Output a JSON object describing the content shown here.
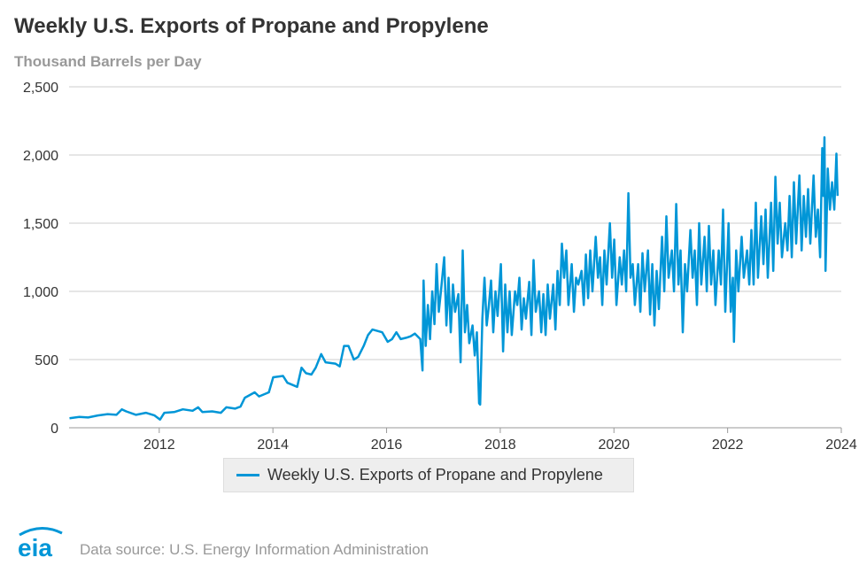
{
  "title": "Weekly U.S. Exports of Propane and Propylene",
  "subtitle": "Thousand Barrels per Day",
  "source": "Data source: U.S. Energy Information Administration",
  "logo_text": "eia",
  "colors": {
    "series": "#0096d7",
    "grid": "#cccccc",
    "logo": "#0096d7"
  },
  "chart_data": {
    "type": "line",
    "title": "Weekly U.S. Exports of Propane and Propylene",
    "ylabel": "Thousand Barrels per Day",
    "xlabel": "",
    "ylim": [
      0,
      2500
    ],
    "xlim": [
      "2010-06-01",
      "2024-01-01"
    ],
    "grid": true,
    "legend_position": "bottom",
    "y_ticks": [
      "0",
      "500",
      "1,000",
      "1,500",
      "2,000",
      "2,500"
    ],
    "y_tick_values": [
      0,
      500,
      1000,
      1500,
      2000,
      2500
    ],
    "x_ticks": [
      "2012",
      "2014",
      "2016",
      "2018",
      "2020",
      "2022",
      "2024"
    ],
    "series": [
      {
        "name": "Weekly U.S. Exports of Propane and Propylene",
        "points": [
          [
            "2010-06-04",
            70
          ],
          [
            "2010-08-06",
            80
          ],
          [
            "2010-10-01",
            75
          ],
          [
            "2010-12-03",
            90
          ],
          [
            "2011-02-04",
            100
          ],
          [
            "2011-04-01",
            95
          ],
          [
            "2011-05-06",
            135
          ],
          [
            "2011-06-03",
            120
          ],
          [
            "2011-08-05",
            95
          ],
          [
            "2011-10-07",
            110
          ],
          [
            "2011-12-02",
            90
          ],
          [
            "2012-01-06",
            60
          ],
          [
            "2012-02-03",
            110
          ],
          [
            "2012-04-06",
            115
          ],
          [
            "2012-06-01",
            135
          ],
          [
            "2012-08-03",
            125
          ],
          [
            "2012-09-07",
            150
          ],
          [
            "2012-10-05",
            115
          ],
          [
            "2012-12-07",
            120
          ],
          [
            "2013-02-01",
            110
          ],
          [
            "2013-03-08",
            150
          ],
          [
            "2013-05-03",
            140
          ],
          [
            "2013-06-07",
            155
          ],
          [
            "2013-07-05",
            220
          ],
          [
            "2013-09-06",
            260
          ],
          [
            "2013-10-04",
            230
          ],
          [
            "2013-12-06",
            260
          ],
          [
            "2014-01-03",
            370
          ],
          [
            "2014-03-07",
            380
          ],
          [
            "2014-04-04",
            330
          ],
          [
            "2014-06-06",
            300
          ],
          [
            "2014-07-04",
            440
          ],
          [
            "2014-08-01",
            400
          ],
          [
            "2014-09-05",
            390
          ],
          [
            "2014-10-03",
            440
          ],
          [
            "2014-11-07",
            540
          ],
          [
            "2014-12-05",
            480
          ],
          [
            "2015-02-06",
            470
          ],
          [
            "2015-03-06",
            450
          ],
          [
            "2015-04-03",
            600
          ],
          [
            "2015-05-01",
            600
          ],
          [
            "2015-06-05",
            500
          ],
          [
            "2015-07-03",
            520
          ],
          [
            "2015-08-07",
            600
          ],
          [
            "2015-09-04",
            680
          ],
          [
            "2015-10-02",
            720
          ],
          [
            "2015-12-04",
            700
          ],
          [
            "2016-01-08",
            630
          ],
          [
            "2016-02-05",
            650
          ],
          [
            "2016-03-04",
            700
          ],
          [
            "2016-04-01",
            650
          ],
          [
            "2016-05-06",
            660
          ],
          [
            "2016-06-03",
            670
          ],
          [
            "2016-07-01",
            690
          ],
          [
            "2016-08-05",
            650
          ],
          [
            "2016-08-19",
            420
          ],
          [
            "2016-08-26",
            1080
          ],
          [
            "2016-09-09",
            600
          ],
          [
            "2016-09-23",
            900
          ],
          [
            "2016-10-07",
            650
          ],
          [
            "2016-10-21",
            1000
          ],
          [
            "2016-11-04",
            760
          ],
          [
            "2016-11-18",
            1200
          ],
          [
            "2016-12-02",
            850
          ],
          [
            "2016-12-16",
            1000
          ],
          [
            "2017-01-06",
            1250
          ],
          [
            "2017-01-20",
            750
          ],
          [
            "2017-02-03",
            1100
          ],
          [
            "2017-02-17",
            700
          ],
          [
            "2017-03-03",
            1050
          ],
          [
            "2017-03-17",
            850
          ],
          [
            "2017-04-07",
            980
          ],
          [
            "2017-04-21",
            480
          ],
          [
            "2017-05-05",
            1300
          ],
          [
            "2017-05-19",
            700
          ],
          [
            "2017-06-02",
            900
          ],
          [
            "2017-06-16",
            620
          ],
          [
            "2017-07-07",
            750
          ],
          [
            "2017-07-21",
            530
          ],
          [
            "2017-08-04",
            700
          ],
          [
            "2017-08-18",
            180
          ],
          [
            "2017-08-25",
            170
          ],
          [
            "2017-09-08",
            800
          ],
          [
            "2017-09-22",
            1100
          ],
          [
            "2017-10-06",
            750
          ],
          [
            "2017-10-20",
            900
          ],
          [
            "2017-11-03",
            1080
          ],
          [
            "2017-11-17",
            700
          ],
          [
            "2017-12-01",
            1000
          ],
          [
            "2017-12-15",
            820
          ],
          [
            "2018-01-05",
            1200
          ],
          [
            "2018-01-19",
            560
          ],
          [
            "2018-02-02",
            1050
          ],
          [
            "2018-02-16",
            700
          ],
          [
            "2018-03-02",
            1000
          ],
          [
            "2018-03-16",
            680
          ],
          [
            "2018-04-06",
            1000
          ],
          [
            "2018-04-20",
            900
          ],
          [
            "2018-05-04",
            1100
          ],
          [
            "2018-05-18",
            720
          ],
          [
            "2018-06-01",
            950
          ],
          [
            "2018-06-15",
            800
          ],
          [
            "2018-07-06",
            1070
          ],
          [
            "2018-07-20",
            680
          ],
          [
            "2018-08-03",
            1230
          ],
          [
            "2018-08-17",
            850
          ],
          [
            "2018-09-07",
            1000
          ],
          [
            "2018-09-21",
            700
          ],
          [
            "2018-10-05",
            980
          ],
          [
            "2018-10-19",
            680
          ],
          [
            "2018-11-02",
            1050
          ],
          [
            "2018-11-16",
            800
          ],
          [
            "2018-12-07",
            1050
          ],
          [
            "2018-12-21",
            720
          ],
          [
            "2019-01-04",
            1150
          ],
          [
            "2019-01-18",
            900
          ],
          [
            "2019-02-01",
            1350
          ],
          [
            "2019-02-15",
            1100
          ],
          [
            "2019-03-01",
            1300
          ],
          [
            "2019-03-15",
            900
          ],
          [
            "2019-04-05",
            1200
          ],
          [
            "2019-04-19",
            850
          ],
          [
            "2019-05-03",
            1100
          ],
          [
            "2019-05-17",
            1050
          ],
          [
            "2019-06-07",
            1150
          ],
          [
            "2019-06-21",
            900
          ],
          [
            "2019-07-05",
            1270
          ],
          [
            "2019-07-19",
            950
          ],
          [
            "2019-08-02",
            1300
          ],
          [
            "2019-08-16",
            1000
          ],
          [
            "2019-09-06",
            1400
          ],
          [
            "2019-09-20",
            1100
          ],
          [
            "2019-10-04",
            1250
          ],
          [
            "2019-10-18",
            900
          ],
          [
            "2019-11-01",
            1300
          ],
          [
            "2019-11-15",
            1050
          ],
          [
            "2019-12-06",
            1500
          ],
          [
            "2019-12-20",
            1100
          ],
          [
            "2020-01-03",
            1380
          ],
          [
            "2020-01-17",
            900
          ],
          [
            "2020-02-07",
            1250
          ],
          [
            "2020-02-21",
            1050
          ],
          [
            "2020-03-06",
            1300
          ],
          [
            "2020-03-20",
            1000
          ],
          [
            "2020-04-03",
            1720
          ],
          [
            "2020-04-17",
            1100
          ],
          [
            "2020-05-01",
            1200
          ],
          [
            "2020-05-15",
            900
          ],
          [
            "2020-06-05",
            1200
          ],
          [
            "2020-06-19",
            850
          ],
          [
            "2020-07-03",
            1280
          ],
          [
            "2020-07-17",
            1000
          ],
          [
            "2020-08-07",
            1300
          ],
          [
            "2020-08-21",
            830
          ],
          [
            "2020-09-04",
            1200
          ],
          [
            "2020-09-18",
            750
          ],
          [
            "2020-10-02",
            1150
          ],
          [
            "2020-10-16",
            870
          ],
          [
            "2020-11-06",
            1400
          ],
          [
            "2020-11-20",
            1000
          ],
          [
            "2020-12-04",
            1550
          ],
          [
            "2020-12-18",
            1100
          ],
          [
            "2021-01-08",
            1300
          ],
          [
            "2021-01-22",
            1000
          ],
          [
            "2021-02-05",
            1640
          ],
          [
            "2021-02-19",
            1050
          ],
          [
            "2021-03-05",
            1300
          ],
          [
            "2021-03-19",
            700
          ],
          [
            "2021-04-02",
            1200
          ],
          [
            "2021-04-16",
            1000
          ],
          [
            "2021-05-07",
            1450
          ],
          [
            "2021-05-21",
            1100
          ],
          [
            "2021-06-04",
            1300
          ],
          [
            "2021-06-18",
            900
          ],
          [
            "2021-07-02",
            1500
          ],
          [
            "2021-07-16",
            1050
          ],
          [
            "2021-08-06",
            1400
          ],
          [
            "2021-08-20",
            1000
          ],
          [
            "2021-09-03",
            1480
          ],
          [
            "2021-09-17",
            1050
          ],
          [
            "2021-10-01",
            1300
          ],
          [
            "2021-10-15",
            900
          ],
          [
            "2021-11-05",
            1300
          ],
          [
            "2021-11-19",
            1050
          ],
          [
            "2021-12-03",
            1600
          ],
          [
            "2021-12-17",
            850
          ],
          [
            "2022-01-07",
            1500
          ],
          [
            "2022-01-21",
            850
          ],
          [
            "2022-02-04",
            1100
          ],
          [
            "2022-02-11",
            630
          ],
          [
            "2022-02-25",
            1300
          ],
          [
            "2022-03-11",
            1000
          ],
          [
            "2022-04-01",
            1400
          ],
          [
            "2022-04-15",
            1100
          ],
          [
            "2022-05-06",
            1300
          ],
          [
            "2022-05-20",
            1050
          ],
          [
            "2022-06-03",
            1450
          ],
          [
            "2022-06-17",
            1050
          ],
          [
            "2022-07-01",
            1650
          ],
          [
            "2022-07-15",
            1100
          ],
          [
            "2022-08-05",
            1550
          ],
          [
            "2022-08-19",
            1200
          ],
          [
            "2022-09-02",
            1600
          ],
          [
            "2022-09-16",
            1100
          ],
          [
            "2022-10-07",
            1650
          ],
          [
            "2022-10-21",
            1150
          ],
          [
            "2022-11-04",
            1840
          ],
          [
            "2022-11-18",
            1350
          ],
          [
            "2022-12-02",
            1650
          ],
          [
            "2022-12-16",
            1250
          ],
          [
            "2023-01-06",
            1500
          ],
          [
            "2023-01-20",
            1300
          ],
          [
            "2023-02-03",
            1700
          ],
          [
            "2023-02-17",
            1250
          ],
          [
            "2023-03-03",
            1800
          ],
          [
            "2023-03-17",
            1350
          ],
          [
            "2023-04-07",
            1850
          ],
          [
            "2023-04-21",
            1300
          ],
          [
            "2023-05-05",
            1700
          ],
          [
            "2023-05-19",
            1400
          ],
          [
            "2023-06-02",
            1750
          ],
          [
            "2023-06-16",
            1350
          ],
          [
            "2023-07-07",
            1850
          ],
          [
            "2023-07-21",
            1400
          ],
          [
            "2023-08-04",
            1600
          ],
          [
            "2023-08-18",
            1250
          ],
          [
            "2023-09-01",
            2050
          ],
          [
            "2023-09-08",
            1700
          ],
          [
            "2023-09-15",
            2130
          ],
          [
            "2023-09-22",
            1150
          ],
          [
            "2023-10-06",
            1900
          ],
          [
            "2023-10-20",
            1600
          ],
          [
            "2023-11-03",
            1800
          ],
          [
            "2023-11-17",
            1600
          ],
          [
            "2023-12-01",
            2010
          ],
          [
            "2023-12-08",
            1700
          ]
        ]
      }
    ]
  }
}
